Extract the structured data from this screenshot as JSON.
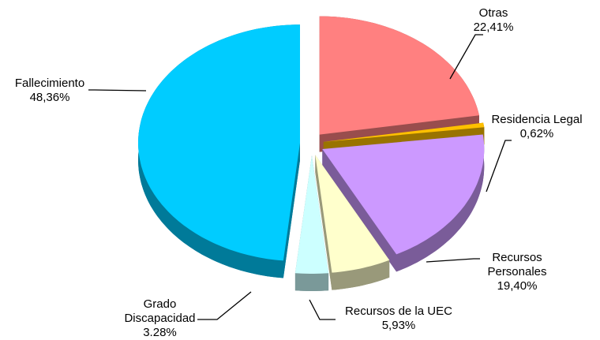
{
  "chart_data": {
    "type": "pie",
    "categories": [
      "Otras",
      "Residencia Legal",
      "Recursos Personales",
      "Recursos de la UEC",
      "Grado Discapacidad",
      "Fallecimiento"
    ],
    "values": [
      22.41,
      0.62,
      19.4,
      5.93,
      3.28,
      48.36
    ],
    "value_labels": [
      "22,41%",
      "0,62%",
      "19,40%",
      "5,93%",
      "3.28%",
      "48,36%"
    ],
    "colors": [
      "#ff8080",
      "#ffc000",
      "#cc99ff",
      "#ffffcc",
      "#ccffff",
      "#00ccff"
    ]
  }
}
